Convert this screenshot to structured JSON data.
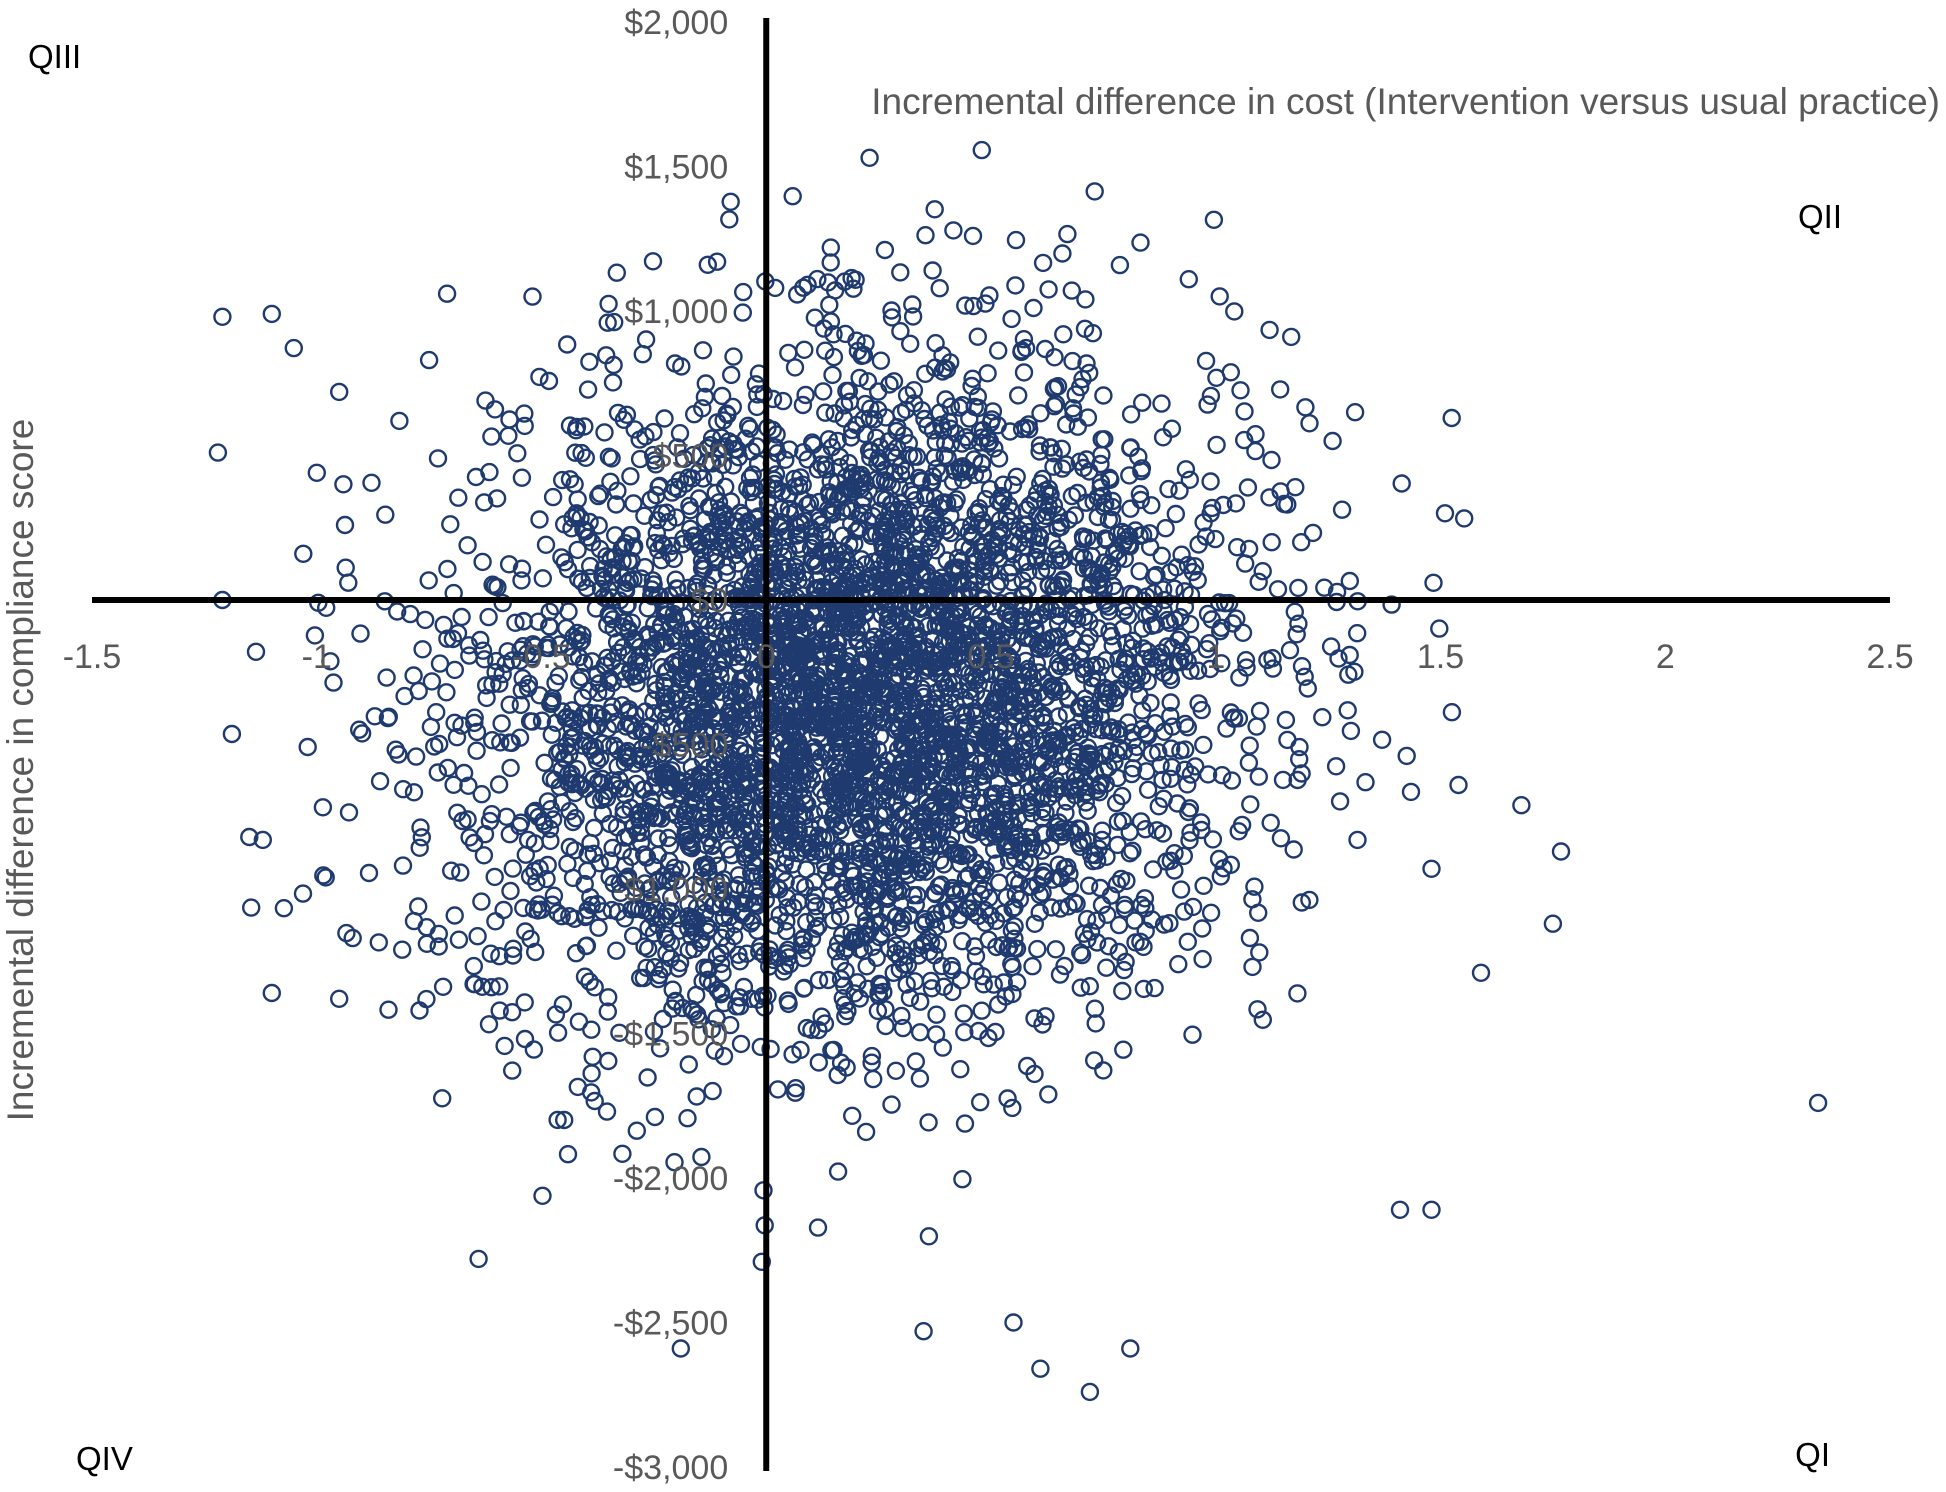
{
  "chart_data": {
    "type": "scatter",
    "title": "",
    "xlabel": "Incremental difference in compliance score",
    "ylabel": "Incremental difference in cost (Intervention versus usual practice)",
    "xlim": [
      -1.5,
      2.5
    ],
    "ylim": [
      -3000,
      2000
    ],
    "x_ticks": [
      -1.5,
      -1,
      -0.5,
      0,
      0.5,
      1,
      1.5,
      2,
      2.5
    ],
    "x_tick_labels": [
      "-1.5",
      "-1",
      "-0.5",
      "0",
      "0.5",
      "1",
      "1.5",
      "2",
      "2.5"
    ],
    "y_ticks": [
      2000,
      1500,
      1000,
      500,
      0,
      -500,
      -1000,
      -1500,
      -2000,
      -2500,
      -3000
    ],
    "y_tick_labels": [
      "$2,000",
      "$1,500",
      "$1,000",
      "$500",
      "$0",
      "-$500",
      "-$1,000",
      "-$1,500",
      "-$2,000",
      "-$2,500",
      "-$3,000"
    ],
    "grid": false,
    "marker": "open-circle",
    "marker_color": "#1f3a6e",
    "quadrant_labels": {
      "top_left": "QIII",
      "top_right": "QII",
      "bottom_left": "QIV",
      "bottom_right": "QI"
    },
    "series": [
      {
        "points": [
          [
            0.23,
            1530
          ],
          [
            0.46,
            1260
          ],
          [
            0.37,
            1140
          ],
          [
            -1.21,
            980
          ],
          [
            -1.1,
            990
          ],
          [
            -0.71,
            1060
          ],
          [
            -0.52,
            1050
          ],
          [
            0.71,
            1040
          ],
          [
            0.94,
            1110
          ],
          [
            -0.13,
            1160
          ],
          [
            0.02,
            1080
          ],
          [
            -1.22,
            510
          ],
          [
            -1.21,
            0
          ],
          [
            -1.03,
            160
          ],
          [
            -1.0,
            440
          ],
          [
            -0.95,
            720
          ],
          [
            -0.75,
            830
          ],
          [
            1.31,
            650
          ],
          [
            1.26,
            550
          ],
          [
            1.51,
            300
          ],
          [
            1.19,
            200
          ],
          [
            2.34,
            -1740
          ],
          [
            1.75,
            -1120
          ],
          [
            1.68,
            -710
          ],
          [
            1.59,
            -1290
          ],
          [
            1.54,
            -640
          ],
          [
            1.48,
            -930
          ],
          [
            1.48,
            -2110
          ],
          [
            1.41,
            -2110
          ],
          [
            -1.1,
            -1360
          ],
          [
            -0.95,
            -1380
          ],
          [
            -0.64,
            -2280
          ],
          [
            -0.19,
            -2590
          ],
          [
            0.72,
            -2740
          ],
          [
            0.61,
            -2660
          ],
          [
            0.35,
            -2530
          ],
          [
            0.55,
            -2500
          ],
          [
            -0.01,
            -2290
          ],
          [
            0.81,
            -2590
          ],
          [
            -1.15,
            -820
          ],
          [
            -1.12,
            -830
          ],
          [
            -0.98,
            -960
          ],
          [
            -0.92,
            -1170
          ],
          [
            -0.81,
            -1210
          ]
        ]
      }
    ]
  }
}
